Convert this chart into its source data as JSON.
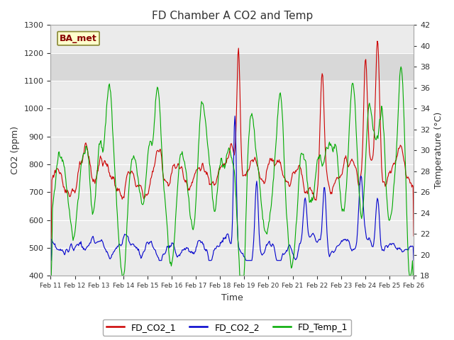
{
  "title": "FD Chamber A CO2 and Temp",
  "xlabel": "Time",
  "ylabel_left": "CO2 (ppm)",
  "ylabel_right": "Temperature (°C)",
  "ylim_left": [
    400,
    1300
  ],
  "ylim_right": [
    18,
    42
  ],
  "yticks_left": [
    400,
    500,
    600,
    700,
    800,
    900,
    1000,
    1100,
    1200,
    1300
  ],
  "yticks_right": [
    18,
    20,
    22,
    24,
    26,
    28,
    30,
    32,
    34,
    36,
    38,
    40,
    42
  ],
  "xticklabels": [
    "Feb 11",
    "Feb 12",
    "Feb 13",
    "Feb 14",
    "Feb 15",
    "Feb 16",
    "Feb 17",
    "Feb 18",
    "Feb 19",
    "Feb 20",
    "Feb 21",
    "Feb 22",
    "Feb 23",
    "Feb 24",
    "Feb 25",
    "Feb 26"
  ],
  "color_co2_1": "#cc0000",
  "color_co2_2": "#0000cc",
  "color_temp": "#00aa00",
  "shaded_band_low": 1100,
  "shaded_band_high": 1200,
  "shade_color": "#d8d8d8",
  "plot_bg_color": "#ebebeb",
  "annotation_text": "BA_met",
  "annotation_fg": "#880000",
  "annotation_bg": "#ffffcc",
  "annotation_border": "#888833",
  "legend_labels": [
    "FD_CO2_1",
    "FD_CO2_2",
    "FD_Temp_1"
  ],
  "background_color": "#ffffff",
  "grid_color": "#ffffff",
  "temp_min": 18,
  "temp_max": 42,
  "co2_min": 400,
  "co2_max": 1300,
  "n_days": 15,
  "n_points": 600,
  "figsize": [
    6.4,
    4.8
  ],
  "dpi": 100
}
